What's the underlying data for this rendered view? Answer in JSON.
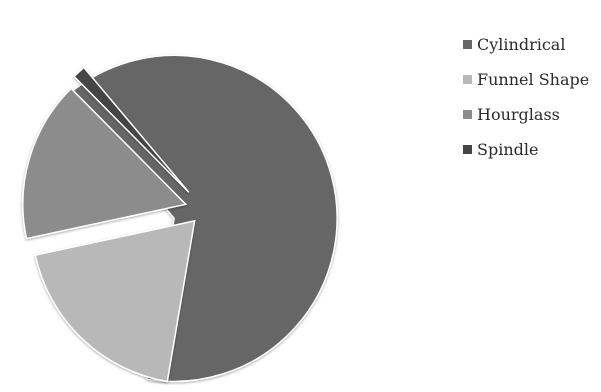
{
  "chart_data": {
    "type": "pie",
    "categories": [
      "Cylindrical",
      "Funnel Shape",
      "Hourglass",
      "Spindle"
    ],
    "values": [
      64,
      19,
      16,
      1.3
    ],
    "colors": [
      "#666666",
      "#b8b8b8",
      "#8c8c8c",
      "#454545"
    ],
    "exploded": true,
    "legend_position": "right"
  }
}
